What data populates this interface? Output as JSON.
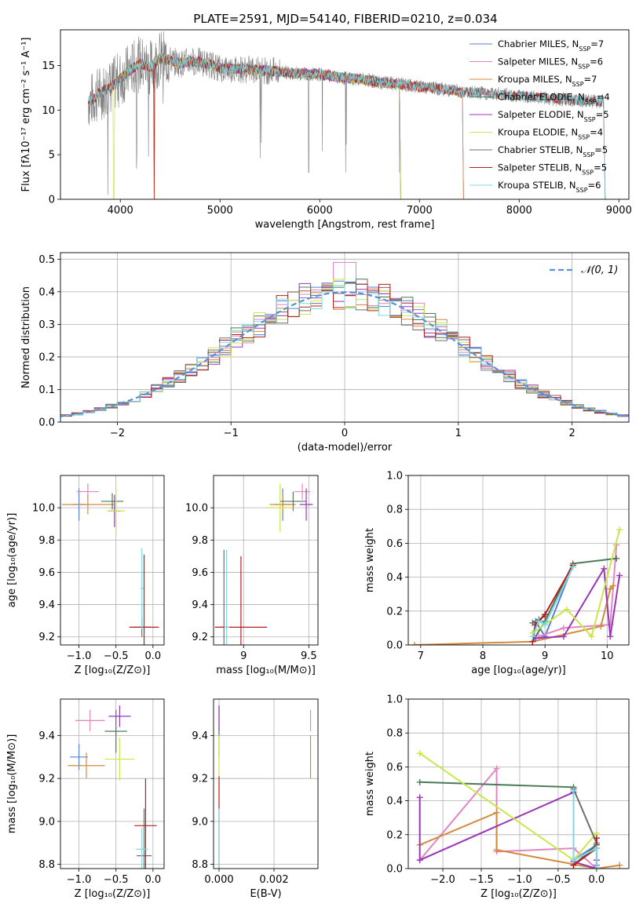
{
  "figure_title": "PLATE=2591, MJD=54140, FIBERID=0210, z=0.034",
  "model_colors": [
    "#5b7fd6",
    "#e285c2",
    "#d38a3c",
    "#4a7a55",
    "#9b35b8",
    "#c9e64a",
    "#6e6e6e",
    "#b41e1e",
    "#7fd8e0"
  ],
  "chart_data": [
    {
      "id": "spectrum",
      "type": "line",
      "title": "PLATE=2591, MJD=54140, FIBERID=0210, z=0.034",
      "xlabel": "wavelength [Angstrom, rest frame]",
      "ylabel": "Flux [fλ10⁻¹⁷ erg cm⁻² s⁻¹ A⁻¹]",
      "xlim": [
        3400,
        9100
      ],
      "ylim": [
        0,
        19
      ],
      "xticks": [
        4000,
        5000,
        6000,
        7000,
        8000,
        9000
      ],
      "yticks": [
        0,
        5,
        10,
        15
      ],
      "grid": false,
      "legend_position": "upper-right",
      "series_data_description": "observed spectrum (grey) with nine SSP model fits",
      "data": {
        "x": [
          3700,
          3800,
          3900,
          4000,
          4100,
          4200,
          4300,
          4400,
          4500,
          4600,
          4700,
          4800,
          4900,
          5000,
          5200,
          5400,
          5600,
          5800,
          6000,
          6200,
          6400,
          6600,
          6800,
          7000,
          7200,
          7400,
          7600,
          7800,
          8000,
          8200,
          8400,
          8600,
          8800
        ],
        "y": [
          11,
          12,
          12.5,
          13.5,
          14.5,
          15.2,
          14.8,
          15.8,
          15.6,
          15.2,
          15.5,
          15.4,
          15.1,
          14.7,
          14.6,
          14.5,
          14.3,
          14.1,
          14,
          13.7,
          13.5,
          13.1,
          12.9,
          12.6,
          12.4,
          12.1,
          11.9,
          11.8,
          11.6,
          11.4,
          11.2,
          11.1,
          11
        ]
      },
      "series": [
        {
          "name": "Chabrier MILES, N_SSP=7",
          "color": "#5b7fd6",
          "end": 7430
        },
        {
          "name": "Salpeter MILES, N_SSP=6",
          "color": "#e285c2",
          "end": 7430
        },
        {
          "name": "Kroupa MILES, N_SSP=7",
          "color": "#d38a3c",
          "end": 7430
        },
        {
          "name": "Chabrier ELODIE, N_SSP=4",
          "color": "#4a7a55",
          "end": 6800
        },
        {
          "name": "Salpeter ELODIE, N_SSP=5",
          "color": "#9b35b8",
          "end": 6800
        },
        {
          "name": "Kroupa ELODIE, N_SSP=4",
          "color": "#c9e64a",
          "end": 6800
        },
        {
          "name": "Chabrier STELIB, N_SSP=5",
          "color": "#6e6e6e",
          "end": 8850
        },
        {
          "name": "Salpeter STELIB, N_SSP=5",
          "color": "#b41e1e",
          "end": 8850
        },
        {
          "name": "Kroupa STELIB, N_SSP=6",
          "color": "#7fd8e0",
          "end": 8850
        }
      ]
    },
    {
      "id": "residuals",
      "type": "line",
      "xlabel": "(data-model)/error",
      "ylabel": "Normed distribution",
      "xlim": [
        -2.5,
        2.5
      ],
      "ylim": [
        0,
        0.52
      ],
      "xticks": [
        -2,
        -1,
        0,
        1,
        2
      ],
      "yticks": [
        0.0,
        0.1,
        0.2,
        0.3,
        0.4,
        0.5
      ],
      "grid": true,
      "legend_position": "upper-right",
      "legend_label": "𝒩(0, 1)",
      "gaussian": {
        "mu": 0,
        "sigma": 1
      }
    },
    {
      "id": "age_vs_Z",
      "type": "scatter",
      "xlabel": "Z [log₁₀(Z/Z⊙)]",
      "ylabel": "age  [log₁₀(age/yr)]",
      "xlim": [
        -1.25,
        0.15
      ],
      "ylim": [
        9.15,
        10.2
      ],
      "xticks": [
        -1.0,
        -0.5,
        0.0
      ],
      "xtick_labels": [
        "−1.0",
        "−0.5",
        "0.0"
      ],
      "yticks": [
        9.2,
        9.4,
        9.6,
        9.8,
        10.0
      ],
      "grid": true,
      "points": [
        {
          "x": -1.0,
          "y": 10.02,
          "xerr": 0.1,
          "yerr": 0.1,
          "c": 0
        },
        {
          "x": -0.88,
          "y": 10.1,
          "xerr": 0.15,
          "yerr": 0.05,
          "c": 1
        },
        {
          "x": -0.88,
          "y": 10.02,
          "xerr": 0.35,
          "yerr": 0.06,
          "c": 2
        },
        {
          "x": -0.55,
          "y": 10.04,
          "xerr": 0.15,
          "yerr": 0.05,
          "c": 3
        },
        {
          "x": -0.52,
          "y": 9.98,
          "xerr": 0.08,
          "yerr": 0.1,
          "c": 4
        },
        {
          "x": -0.5,
          "y": 9.98,
          "xerr": 0.12,
          "yerr": 0.15,
          "c": 5
        },
        {
          "x": -0.15,
          "y": 9.26,
          "xerr": 0.12,
          "yerr": 0.06,
          "c": 6
        },
        {
          "x": -0.12,
          "y": 9.26,
          "xerr": 0.2,
          "yerr": 0.45,
          "c": 7
        },
        {
          "x": -0.15,
          "y": 9.5,
          "xerr": 0.02,
          "yerr": 0.25,
          "c": 8
        }
      ]
    },
    {
      "id": "age_vs_mass",
      "type": "scatter",
      "xlabel": "mass [log₁₀(M/M⊙)]",
      "xlim": [
        8.77,
        9.57
      ],
      "ylim": [
        9.15,
        10.2
      ],
      "xticks": [
        9.0,
        9.5
      ],
      "yticks": [
        9.2,
        9.4,
        9.6,
        9.8,
        10.0
      ],
      "grid": true,
      "points": [
        {
          "x": 9.3,
          "y": 10.02,
          "xerr": 0.06,
          "yerr": 0.1,
          "c": 0
        },
        {
          "x": 9.45,
          "y": 10.1,
          "xerr": 0.06,
          "yerr": 0.05,
          "c": 1
        },
        {
          "x": 9.3,
          "y": 10.02,
          "xerr": 0.1,
          "yerr": 0.06,
          "c": 2
        },
        {
          "x": 9.38,
          "y": 10.04,
          "xerr": 0.1,
          "yerr": 0.06,
          "c": 3
        },
        {
          "x": 9.48,
          "y": 10.02,
          "xerr": 0.05,
          "yerr": 0.1,
          "c": 4
        },
        {
          "x": 9.28,
          "y": 10.0,
          "xerr": 0.1,
          "yerr": 0.15,
          "c": 5
        },
        {
          "x": 8.85,
          "y": 9.26,
          "xerr": 0.03,
          "yerr": 0.48,
          "c": 6
        },
        {
          "x": 8.98,
          "y": 9.26,
          "xerr": 0.2,
          "yerr": 0.44,
          "c": 7
        },
        {
          "x": 8.87,
          "y": 9.26,
          "xerr": 0.02,
          "yerr": 0.48,
          "c": 8
        }
      ]
    },
    {
      "id": "weight_vs_age",
      "type": "line",
      "xlabel": "age  [log₁₀(age/yr)]",
      "ylabel": "mass weight",
      "xlim": [
        6.8,
        10.35
      ],
      "ylim": [
        0,
        1.0
      ],
      "xticks": [
        7,
        8,
        9,
        10
      ],
      "yticks": [
        0.0,
        0.2,
        0.4,
        0.6,
        0.8,
        1.0
      ],
      "grid": true,
      "series": [
        {
          "c": 0,
          "x": [
            8.8,
            8.85,
            9.0,
            9.45
          ],
          "y": [
            0.02,
            0.14,
            0.05,
            0.47
          ]
        },
        {
          "c": 1,
          "x": [
            8.9,
            9.3,
            10.05,
            10.15
          ],
          "y": [
            0.05,
            0.1,
            0.12,
            0.59
          ]
        },
        {
          "c": 2,
          "x": [
            6.9,
            8.8,
            9.9,
            10.05,
            10.1
          ],
          "y": [
            0.0,
            0.02,
            0.11,
            0.33,
            0.35
          ]
        },
        {
          "c": 3,
          "x": [
            8.8,
            9.0,
            9.45,
            10.15
          ],
          "y": [
            0.02,
            0.14,
            0.48,
            0.51
          ]
        },
        {
          "c": 4,
          "x": [
            8.85,
            9.3,
            9.95,
            10.05,
            10.2
          ],
          "y": [
            0.04,
            0.05,
            0.45,
            0.05,
            0.41
          ]
        },
        {
          "c": 5,
          "x": [
            8.8,
            9.35,
            9.75,
            10.2
          ],
          "y": [
            0.07,
            0.21,
            0.05,
            0.68
          ]
        },
        {
          "c": 6,
          "x": [
            8.8,
            8.9,
            9.0
          ],
          "y": [
            0.13,
            0.15,
            0.17
          ]
        },
        {
          "c": 7,
          "x": [
            8.8,
            8.85,
            9.0,
            9.45
          ],
          "y": [
            0.02,
            0.12,
            0.18,
            0.47
          ]
        },
        {
          "c": 8,
          "x": [
            8.8,
            8.9,
            9.0,
            9.45
          ],
          "y": [
            0.05,
            0.14,
            0.12,
            0.46
          ]
        }
      ]
    },
    {
      "id": "mass_vs_Z",
      "type": "scatter",
      "xlabel": "Z [log₁₀(Z/Z⊙)]",
      "ylabel": "mass [log₁₀(M/M⊙)]",
      "xlim": [
        -1.25,
        0.15
      ],
      "ylim": [
        8.78,
        9.57
      ],
      "xticks": [
        -1.0,
        -0.5,
        0.0
      ],
      "xtick_labels": [
        "−1.0",
        "−0.5",
        "0.0"
      ],
      "yticks": [
        8.8,
        9.0,
        9.2,
        9.4
      ],
      "grid": true,
      "points": [
        {
          "x": -1.0,
          "y": 9.3,
          "xerr": 0.12,
          "yerr": 0.06,
          "c": 0
        },
        {
          "x": -0.85,
          "y": 9.47,
          "xerr": 0.2,
          "yerr": 0.05,
          "c": 1
        },
        {
          "x": -0.9,
          "y": 9.26,
          "xerr": 0.25,
          "yerr": 0.06,
          "c": 2
        },
        {
          "x": -0.5,
          "y": 9.42,
          "xerr": 0.15,
          "yerr": 0.1,
          "c": 3
        },
        {
          "x": -0.45,
          "y": 9.49,
          "xerr": 0.15,
          "yerr": 0.05,
          "c": 4
        },
        {
          "x": -0.45,
          "y": 9.29,
          "xerr": 0.2,
          "yerr": 0.1,
          "c": 5
        },
        {
          "x": -0.12,
          "y": 8.84,
          "xerr": 0.1,
          "yerr": 0.22,
          "c": 6
        },
        {
          "x": -0.1,
          "y": 8.98,
          "xerr": 0.15,
          "yerr": 0.22,
          "c": 7
        },
        {
          "x": -0.15,
          "y": 8.87,
          "xerr": 0.08,
          "yerr": 0.1,
          "c": 8
        }
      ]
    },
    {
      "id": "mass_vs_ebv",
      "type": "scatter",
      "xlabel": "E(B-V)",
      "xlim": [
        -0.0002,
        0.0036
      ],
      "ylim": [
        8.78,
        9.57
      ],
      "xticks": [
        0.0,
        0.002
      ],
      "xtick_labels": [
        "0.000",
        "0.002"
      ],
      "yticks": [
        8.8,
        9.0,
        9.2,
        9.4
      ],
      "grid": true,
      "points": [
        {
          "x": 0.0,
          "y": 9.42,
          "yerr": 0.12,
          "c": 3
        },
        {
          "x": 0.0,
          "y": 9.48,
          "yerr": 0.06,
          "c": 4
        },
        {
          "x": 0.0,
          "y": 9.3,
          "yerr": 0.1,
          "c": 5
        },
        {
          "x": 0.0,
          "y": 8.99,
          "yerr": 0.22,
          "c": 7
        },
        {
          "x": 0.0,
          "y": 8.91,
          "yerr": 0.15,
          "c": 8
        },
        {
          "x": 0.00333,
          "y": 9.47,
          "yerr": 0.05,
          "c": 1
        },
        {
          "x": 0.00333,
          "y": 9.3,
          "yerr": 0.1,
          "c": 2
        }
      ]
    },
    {
      "id": "weight_vs_Z",
      "type": "line",
      "xlabel": "Z [log₁₀(Z/Z⊙)]",
      "ylabel": "mass weight",
      "xlim": [
        -2.45,
        0.42
      ],
      "ylim": [
        0,
        1.0
      ],
      "xticks": [
        -2.0,
        -1.5,
        -1.0,
        -0.5,
        0.0
      ],
      "xtick_labels": [
        "−2.0",
        "−1.5",
        "−1.0",
        "−0.5",
        "0.0"
      ],
      "yticks": [
        0.0,
        0.2,
        0.4,
        0.6,
        0.8,
        1.0
      ],
      "grid": true,
      "series": [
        {
          "c": 0,
          "x": [
            -0.3,
            -0.3,
            0.0,
            0.0
          ],
          "y": [
            0.47,
            0.05,
            0.14,
            0.02
          ]
        },
        {
          "c": 1,
          "x": [
            -2.3,
            -1.3,
            -1.3,
            -0.3,
            0.0
          ],
          "y": [
            0.05,
            0.59,
            0.1,
            0.12,
            0.0
          ]
        },
        {
          "c": 2,
          "x": [
            -2.3,
            -1.3,
            -1.3,
            0.0,
            0.3
          ],
          "y": [
            0.14,
            0.33,
            0.11,
            0.0,
            0.02
          ]
        },
        {
          "c": 3,
          "x": [
            -2.3,
            -0.3,
            -0.3,
            0.0
          ],
          "y": [
            0.51,
            0.48,
            0.02,
            0.14
          ]
        },
        {
          "c": 4,
          "x": [
            -2.3,
            -2.3,
            -0.3,
            -0.3,
            0.0,
            0.0
          ],
          "y": [
            0.42,
            0.05,
            0.45,
            0.04,
            0.0,
            0.05
          ]
        },
        {
          "c": 5,
          "x": [
            -2.3,
            -0.3,
            0.0
          ],
          "y": [
            0.68,
            0.05,
            0.21
          ]
        },
        {
          "c": 6,
          "x": [
            -0.3,
            0.0
          ],
          "y": [
            0.47,
            0.15
          ]
        },
        {
          "c": 7,
          "x": [
            -0.3,
            0.0,
            0.0
          ],
          "y": [
            0.02,
            0.12,
            0.18
          ]
        },
        {
          "c": 8,
          "x": [
            -0.3,
            -0.3,
            0.0,
            0.0
          ],
          "y": [
            0.46,
            0.05,
            0.12,
            0.0
          ]
        }
      ]
    }
  ]
}
